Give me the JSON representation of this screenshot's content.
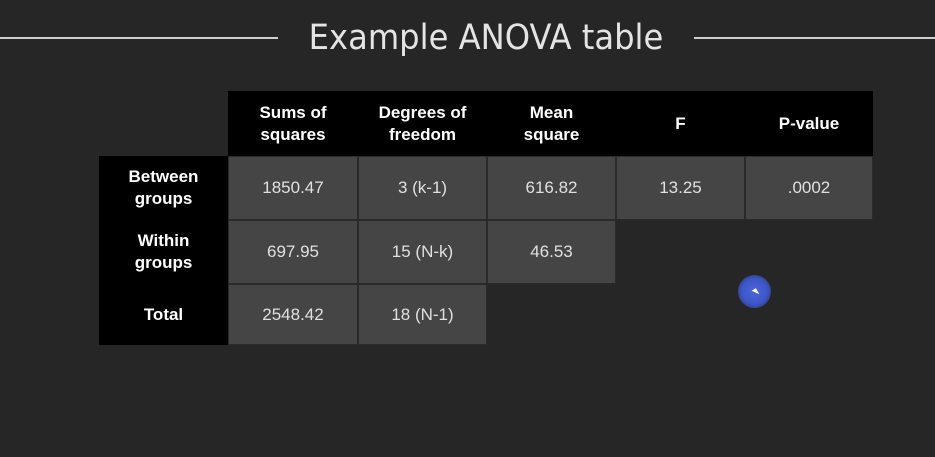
{
  "title": "Example ANOVA table",
  "table": {
    "columns": [
      "Sums of\nsquares",
      "Degrees of\nfreedom",
      "Mean\nsquare",
      "F",
      "P-value"
    ],
    "rows": [
      {
        "label": "Between\ngroups",
        "cells": [
          "1850.47",
          "3 (k-1)",
          "616.82",
          "13.25",
          ".0002"
        ]
      },
      {
        "label": "Within\ngroups",
        "cells": [
          "697.95",
          "15 (N-k)",
          "46.53"
        ]
      },
      {
        "label": "Total",
        "cells": [
          "2548.42",
          "18 (N-1)"
        ]
      }
    ]
  },
  "colors": {
    "background": "#262626",
    "header": "#000000",
    "cell": "#454545",
    "cursor": "#3c55c8"
  }
}
